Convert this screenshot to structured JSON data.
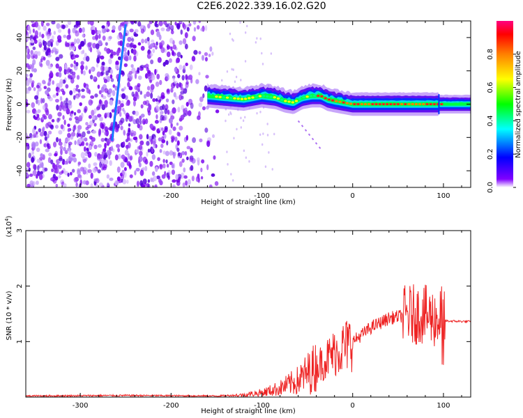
{
  "title": "C2E6.2022.339.16.02.G20",
  "chart_data": [
    {
      "type": "heatmap",
      "xlabel": "Height of straight line (km)",
      "ylabel": "Frequency (Hz)",
      "xlim": [
        -360,
        130
      ],
      "ylim": [
        -50,
        50
      ],
      "xticks": [
        -300,
        -200,
        -100,
        0,
        100
      ],
      "yticks": [
        -40,
        -20,
        0,
        20,
        40
      ],
      "colorbar": {
        "label": "Normalized spectral amplitude",
        "range": [
          0,
          1
        ],
        "ticks": [
          "0.0",
          "0.2",
          "0.4",
          "0.6",
          "0.8"
        ],
        "colormap": "rainbow",
        "colors": [
          "#ffffff",
          "#8000ff",
          "#0000ff",
          "#00ffff",
          "#00ff00",
          "#ffff00",
          "#ff8000",
          "#ff0000",
          "#ff0080"
        ]
      },
      "features": {
        "noise_region_x": [
          -360,
          -145
        ],
        "trace_center_hz": [
          [
            -160,
            5
          ],
          [
            -140,
            4
          ],
          [
            -120,
            3
          ],
          [
            -100,
            5
          ],
          [
            -85,
            4
          ],
          [
            -75,
            2
          ],
          [
            -65,
            1
          ],
          [
            -55,
            4
          ],
          [
            -45,
            5
          ],
          [
            -35,
            5
          ],
          [
            -28,
            3
          ],
          [
            -20,
            2
          ],
          [
            -10,
            1
          ],
          [
            0,
            0
          ],
          [
            20,
            0
          ],
          [
            50,
            0
          ],
          [
            80,
            0
          ],
          [
            95,
            0
          ],
          [
            130,
            0
          ]
        ],
        "streak_line": {
          "x": [
            -265,
            -250
          ],
          "y": [
            -22,
            48
          ]
        },
        "faint_branch": {
          "x": [
            -60,
            -35
          ],
          "y": [
            -10,
            -27
          ]
        }
      }
    },
    {
      "type": "line",
      "xlabel": "Height of straight line (km)",
      "ylabel": "SNR (10 * v/v)",
      "y_multiplier": "(x10",
      "y_multiplier_exp": "4",
      "xlim": [
        -360,
        130
      ],
      "ylim": [
        0,
        3
      ],
      "xticks": [
        -300,
        -200,
        -100,
        0,
        100
      ],
      "yticks": [
        1,
        2,
        3
      ],
      "line_color": "#ee2222",
      "x": [
        -360,
        -250,
        -150,
        -120,
        -100,
        -80,
        -60,
        -40,
        -20,
        0,
        20,
        40,
        60,
        75,
        85,
        95,
        98,
        100,
        105,
        130
      ],
      "y": [
        0.02,
        0.03,
        0.02,
        0.04,
        0.08,
        0.16,
        0.3,
        0.55,
        0.8,
        1.0,
        1.25,
        1.42,
        1.48,
        1.5,
        1.45,
        1.4,
        1.5,
        1.38,
        1.37,
        1.36
      ]
    }
  ]
}
